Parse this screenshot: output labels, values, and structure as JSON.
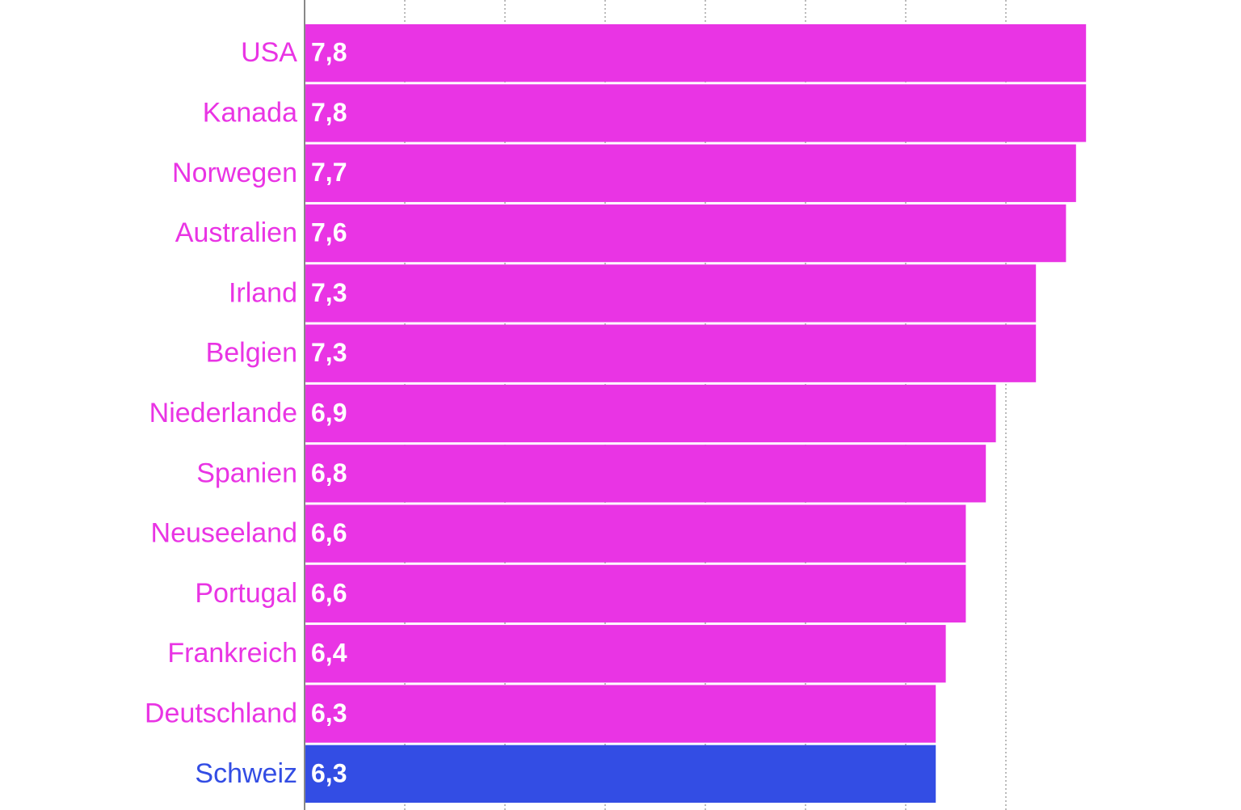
{
  "chart_data": {
    "type": "hbar",
    "categories": [
      "USA",
      "Kanada",
      "Norwegen",
      "Australien",
      "Irland",
      "Belgien",
      "Niederlande",
      "Spanien",
      "Neuseeland",
      "Portugal",
      "Frankreich",
      "Deutschland",
      "Schweiz"
    ],
    "values": [
      7.8,
      7.8,
      7.7,
      7.6,
      7.3,
      7.3,
      6.9,
      6.8,
      6.6,
      6.6,
      6.4,
      6.3,
      6.3
    ],
    "value_labels": [
      "7,8",
      "7,8",
      "7,7",
      "7,6",
      "7,3",
      "7,3",
      "6,9",
      "6,8",
      "6,6",
      "6,6",
      "6,4",
      "6,3",
      "6,3"
    ],
    "colors": [
      "#e934e4",
      "#e934e4",
      "#e934e4",
      "#e934e4",
      "#e934e4",
      "#e934e4",
      "#e934e4",
      "#e934e4",
      "#e934e4",
      "#e934e4",
      "#e934e4",
      "#e934e4",
      "#334de4"
    ],
    "xlim": [
      0,
      9
    ],
    "xticks": [
      1,
      2,
      3,
      4,
      5,
      6,
      7
    ],
    "grid": true
  }
}
